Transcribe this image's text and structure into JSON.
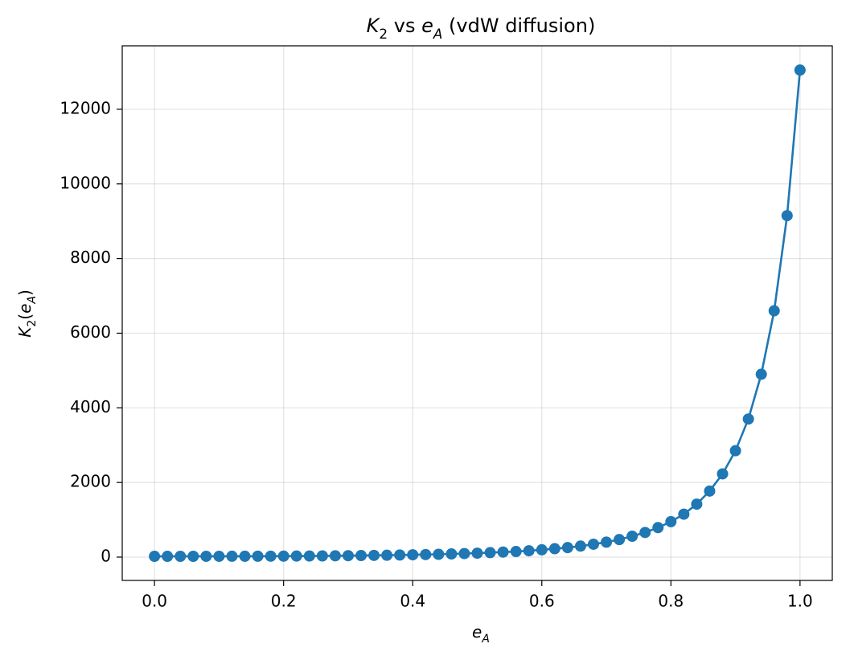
{
  "chart_data": {
    "type": "line",
    "title": "$K_2$ vs $e_A$ (vdW diffusion)",
    "x_label": "$e_A$",
    "y_label": "$K_2(e_A)$",
    "x": [
      0,
      0.02,
      0.04,
      0.06,
      0.08,
      0.1,
      0.12,
      0.14,
      0.16,
      0.18,
      0.2,
      0.22,
      0.24,
      0.26,
      0.28,
      0.3,
      0.32,
      0.34,
      0.36,
      0.38,
      0.4,
      0.42,
      0.44,
      0.46,
      0.48,
      0.5,
      0.52,
      0.54,
      0.56,
      0.58,
      0.6,
      0.62,
      0.64,
      0.66,
      0.68,
      0.7,
      0.72,
      0.74,
      0.76,
      0.78,
      0.8,
      0.82,
      0.84,
      0.86,
      0.88,
      0.9,
      0.92,
      0.94,
      0.96,
      0.98,
      1
    ],
    "series": [
      {
        "color": "#1f77b4",
        "values": [
          20,
          20,
          21,
          21,
          22,
          22,
          23,
          23,
          24,
          25,
          26,
          28,
          30,
          32,
          35,
          38,
          42,
          46,
          50,
          56,
          62,
          68,
          75,
          85,
          95,
          105,
          120,
          135,
          150,
          170,
          195,
          225,
          255,
          295,
          345,
          400,
          470,
          560,
          660,
          790,
          950,
          1150,
          1420,
          1770,
          2230,
          2850,
          3700,
          4900,
          6600,
          9150,
          13050
        ]
      }
    ],
    "xlim": [
      -0.05,
      1.05
    ],
    "ylim": [
      -625,
      13700
    ],
    "xticks": [
      {
        "value": 0,
        "label": "0.0"
      },
      0.2,
      0.4,
      0.6,
      0.8,
      {
        "value": 1,
        "label": "1.0"
      }
    ],
    "yticks": [
      0,
      2000,
      4000,
      6000,
      8000,
      10000,
      12000
    ],
    "grid": true
  }
}
